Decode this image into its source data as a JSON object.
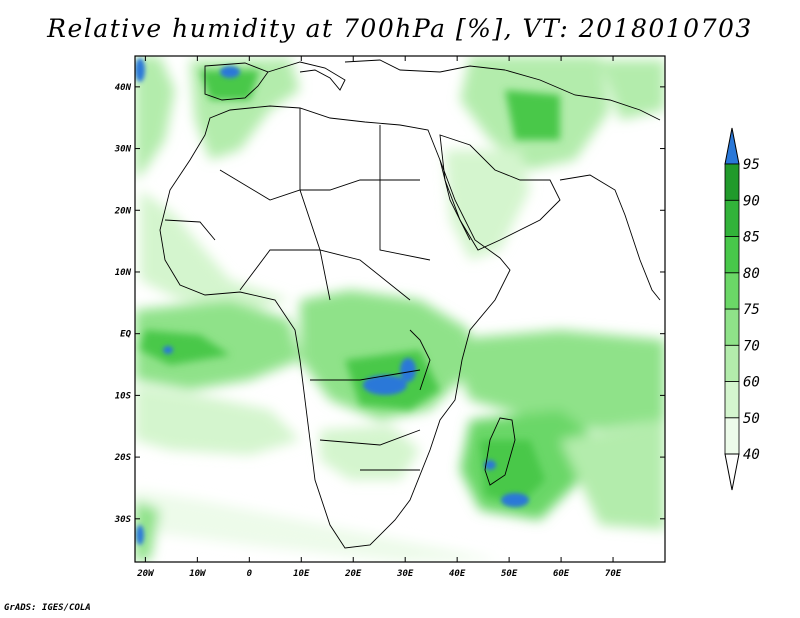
{
  "title": "Relative humidity at 700hPa [%], VT: 2018010703",
  "credit": "GrADS: IGES/COLA",
  "lat_labels": [
    "40N",
    "30N",
    "20N",
    "10N",
    "EQ",
    "10S",
    "20S",
    "30S"
  ],
  "lat_values": [
    40,
    30,
    20,
    10,
    0,
    -10,
    -20,
    -30
  ],
  "lon_labels": [
    "20W",
    "10W",
    "0",
    "10E",
    "20E",
    "30E",
    "40E",
    "50E",
    "60E",
    "70E"
  ],
  "lon_values": [
    -20,
    -10,
    0,
    10,
    20,
    30,
    40,
    50,
    60,
    70
  ],
  "map_extent": {
    "lon_min": -22,
    "lon_max": 80,
    "lat_min": -37,
    "lat_max": 45
  },
  "colorbar": {
    "labels": [
      "40",
      "50",
      "60",
      "70",
      "75",
      "80",
      "85",
      "90",
      "95"
    ],
    "colors": [
      "#edfbea",
      "#d4f5ce",
      "#b3ecac",
      "#8fe289",
      "#6bd767",
      "#48c84a",
      "#32b33a",
      "#219a2b",
      "#1f6fd6"
    ],
    "over_color": "#2a78d8"
  }
}
